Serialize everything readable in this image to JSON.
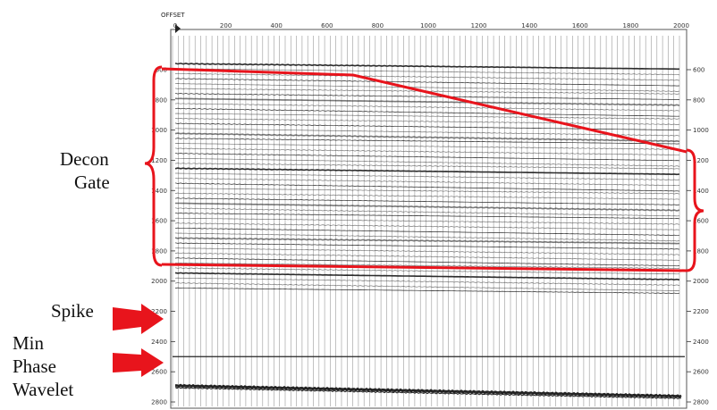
{
  "header": {
    "axis_title": "OFFSET"
  },
  "x_ticks": [
    "0",
    "200",
    "400",
    "600",
    "800",
    "1000",
    "1200",
    "1400",
    "1600",
    "1800",
    "2000"
  ],
  "y_ticks_left": [
    "600",
    "800",
    "1000",
    "1200",
    "1400",
    "1600",
    "1800",
    "2000",
    "2200",
    "2400",
    "2600",
    "2800"
  ],
  "y_ticks_right": [
    "600",
    "800",
    "1000",
    "1200",
    "1400",
    "1600",
    "1800",
    "2000",
    "2200",
    "2400",
    "2600",
    "2800"
  ],
  "annotations": {
    "decon_gate_line1": "Decon",
    "decon_gate_line2": "Gate",
    "spike": "Spike",
    "min_phase_line1": "Min",
    "min_phase_line2": "Phase",
    "min_phase_line3": "Wavelet"
  },
  "colors": {
    "gate_outline": "#e8141c",
    "arrow": "#e8141c",
    "trace": "#222222",
    "grid": "#9a9a9a"
  }
}
